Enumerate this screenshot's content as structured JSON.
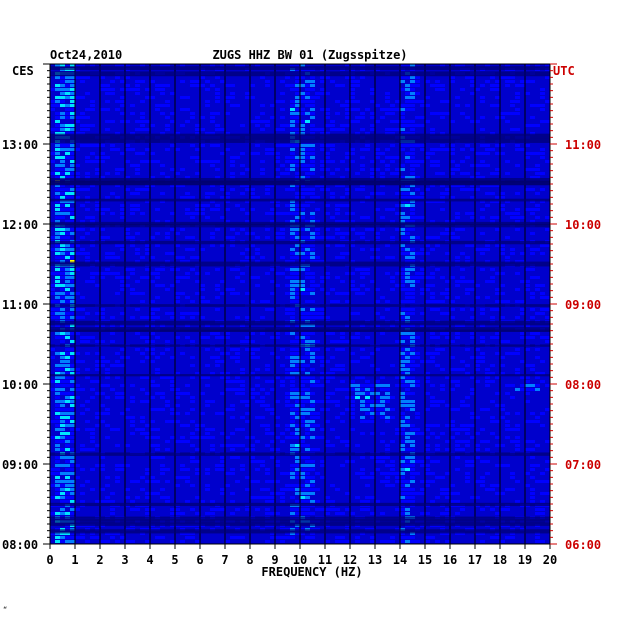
{
  "chart_data": {
    "type": "heatmap",
    "date": "Oct24,2010",
    "title": "ZUGS HHZ BW 01 (Zugsspitze)",
    "xlabel": "FREQUENCY (HZ)",
    "xlim": [
      0,
      20
    ],
    "x_ticks": [
      "0",
      "1",
      "2",
      "3",
      "4",
      "5",
      "6",
      "7",
      "8",
      "9",
      "10",
      "11",
      "12",
      "13",
      "14",
      "15",
      "16",
      "17",
      "18",
      "19",
      "20"
    ],
    "left_axis_label": "CES",
    "right_axis_label": "UTC",
    "left_time_ticks": [
      "13:00",
      "12:00",
      "11:00",
      "10:00",
      "09:00",
      "08:00"
    ],
    "right_time_ticks": [
      "11:00",
      "10:00",
      "09:00",
      "08:00",
      "07:00",
      "06:00"
    ],
    "time_range_local": [
      "08:00",
      "14:00"
    ],
    "colormap": [
      "#00008b",
      "#0000ff",
      "#0080ff",
      "#00e5ff",
      "#ffff00",
      "#ff0000"
    ],
    "energy_bands_hz": [
      {
        "band": [
          0.1,
          0.9
        ],
        "level": "high"
      },
      {
        "band": [
          9.5,
          10.5
        ],
        "level": "medium"
      },
      {
        "band": [
          11.8,
          13.5
        ],
        "level": "medium",
        "time_local": [
          "09:35",
          "10:00"
        ]
      },
      {
        "band": [
          13.8,
          14.5
        ],
        "level": "medium"
      },
      {
        "band": [
          18.5,
          19.5
        ],
        "level": "medium",
        "time_local": [
          "09:55",
          "10:00"
        ]
      }
    ],
    "grid": true
  },
  "colors": {
    "axis_left": "#000000",
    "axis_right": "#cc0000",
    "grid": "#000000"
  },
  "corner_mark": "“"
}
